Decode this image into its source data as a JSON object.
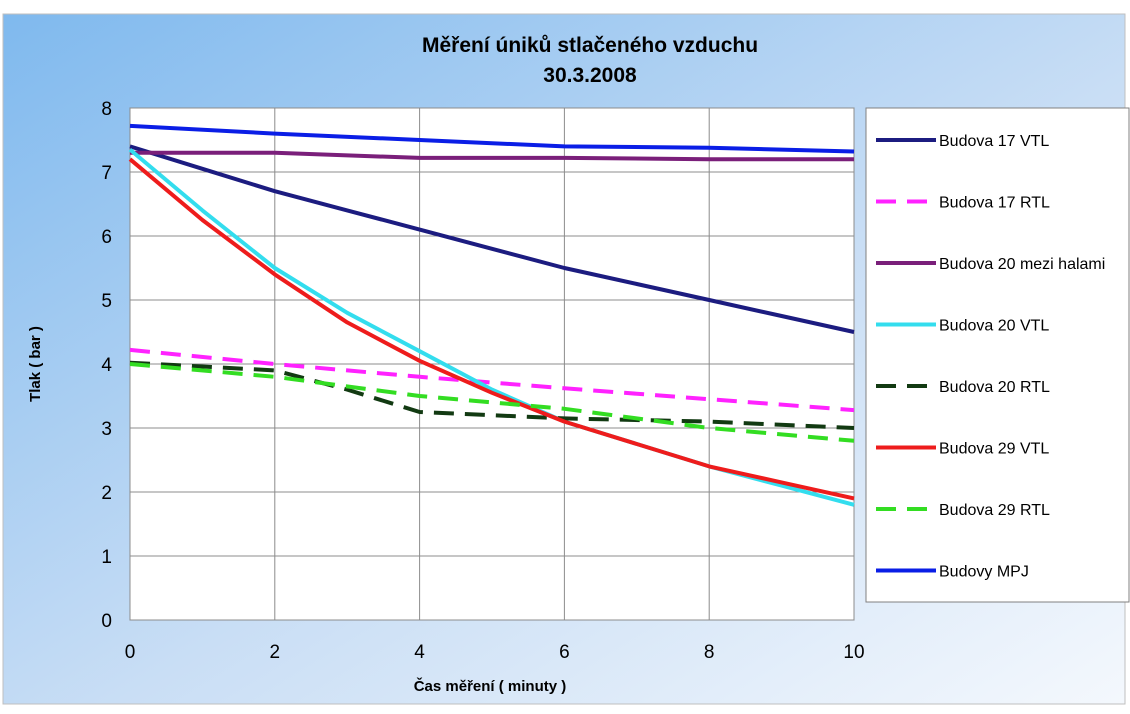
{
  "chart_data": {
    "type": "line",
    "title": "Měření úniků stlačeného vzduchu",
    "subtitle": "30.3.2008",
    "xlabel": "Čas měření ( minuty )",
    "ylabel": "Tlak ( bar )",
    "xlim": [
      0,
      10
    ],
    "ylim": [
      0,
      8
    ],
    "xticks": [
      "0",
      "2",
      "4",
      "6",
      "8",
      "10"
    ],
    "yticks": [
      "0",
      "1",
      "2",
      "3",
      "4",
      "5",
      "6",
      "7",
      "8"
    ],
    "grid": true,
    "legend_position": "right",
    "series": [
      {
        "name": "Budova 17 VTL",
        "color": "#1c1c80",
        "dashed": false,
        "x": [
          0,
          1,
          2,
          3,
          4,
          5,
          6,
          7,
          8,
          9,
          10
        ],
        "y": [
          7.4,
          7.05,
          6.7,
          6.4,
          6.1,
          5.8,
          5.5,
          5.25,
          5.0,
          4.75,
          4.5
        ]
      },
      {
        "name": "Budova 17 RTL",
        "color": "#ff22ff",
        "dashed": true,
        "x": [
          0,
          2,
          4,
          6,
          8,
          10
        ],
        "y": [
          4.22,
          4.0,
          3.8,
          3.62,
          3.45,
          3.28
        ]
      },
      {
        "name": "Budova 20 mezi halami",
        "color": "#7a1f7a",
        "dashed": false,
        "x": [
          0,
          2,
          4,
          6,
          8,
          10
        ],
        "y": [
          7.3,
          7.3,
          7.22,
          7.22,
          7.2,
          7.2
        ]
      },
      {
        "name": "Budova 20 VTL",
        "color": "#33ddee",
        "dashed": false,
        "x": [
          0,
          1,
          2,
          3,
          4,
          5,
          6,
          7,
          8,
          9,
          10
        ],
        "y": [
          7.35,
          6.4,
          5.5,
          4.8,
          4.2,
          3.6,
          3.1,
          2.75,
          2.4,
          2.1,
          1.8
        ]
      },
      {
        "name": "Budova 20 RTL",
        "color": "#123a12",
        "dashed": true,
        "x": [
          0,
          2,
          3,
          4,
          6,
          8,
          10
        ],
        "y": [
          4.02,
          3.9,
          3.6,
          3.25,
          3.15,
          3.1,
          3.0
        ]
      },
      {
        "name": "Budova 29 VTL",
        "color": "#ee1c1c",
        "dashed": false,
        "x": [
          0,
          1,
          2,
          3,
          4,
          5,
          6,
          7,
          8,
          9,
          10
        ],
        "y": [
          7.2,
          6.25,
          5.4,
          4.65,
          4.05,
          3.55,
          3.1,
          2.75,
          2.4,
          2.15,
          1.9
        ]
      },
      {
        "name": "Budova 29 RTL",
        "color": "#33dd22",
        "dashed": true,
        "x": [
          0,
          2,
          4,
          6,
          8,
          10
        ],
        "y": [
          4.0,
          3.8,
          3.5,
          3.3,
          3.0,
          2.8
        ]
      },
      {
        "name": "Budovy MPJ",
        "color": "#0a1ee6",
        "dashed": false,
        "x": [
          0,
          2,
          4,
          6,
          8,
          10
        ],
        "y": [
          7.72,
          7.6,
          7.5,
          7.4,
          7.38,
          7.32
        ]
      }
    ]
  }
}
